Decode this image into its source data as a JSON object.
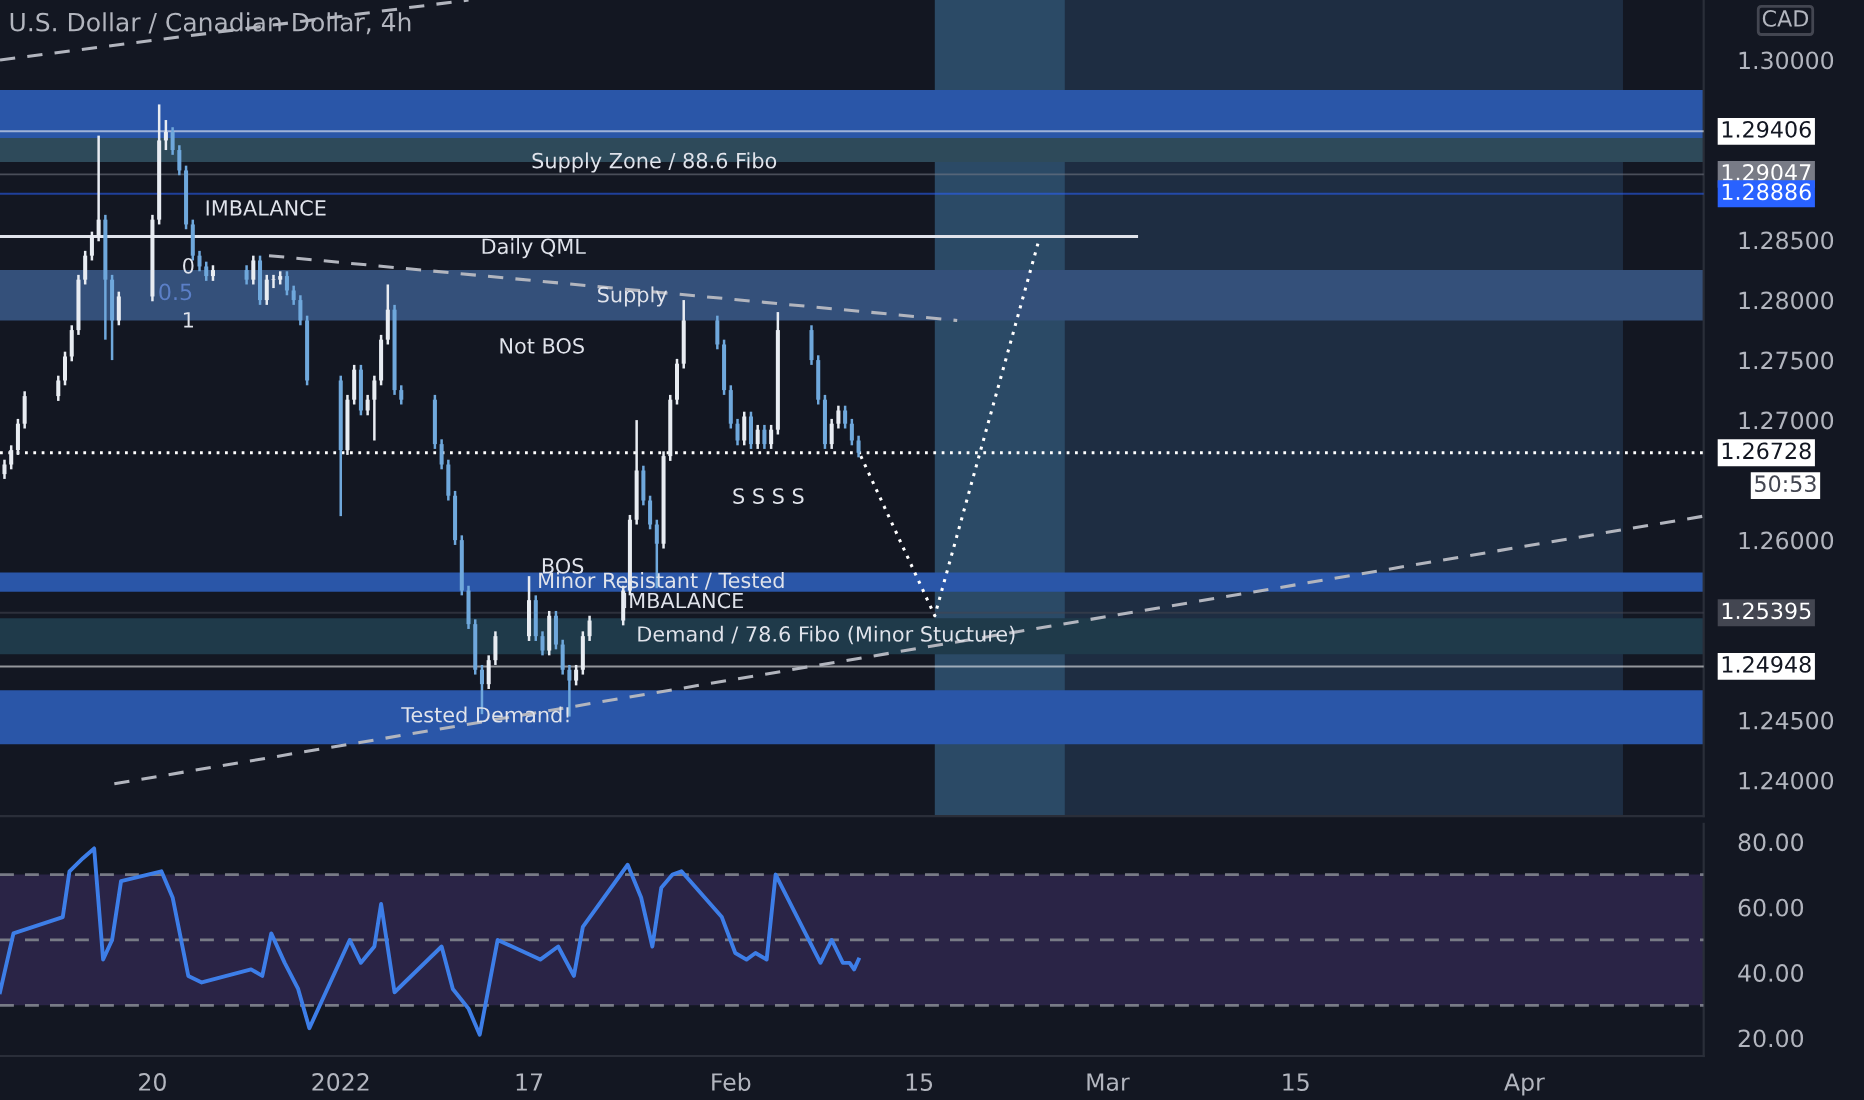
{
  "chart_data": [
    {
      "type": "candlestick",
      "title": "U.S. Dollar / Canadian Dollar, 4h",
      "x": [
        "2021-12-09T00:00",
        "2021-12-09T12:00",
        "2021-12-10T00:00",
        "2021-12-10T12:00",
        "2021-12-13T00:00",
        "2021-12-13T12:00",
        "2021-12-14T00:00",
        "2021-12-14T12:00",
        "2021-12-15T00:00",
        "2021-12-15T12:00",
        "2021-12-16T00:00",
        "2021-12-16T12:00",
        "2021-12-17T00:00",
        "2021-12-17T12:00",
        "2021-12-20T00:00",
        "2021-12-20T12:00",
        "2021-12-21T00:00",
        "2021-12-21T12:00",
        "2021-12-22T00:00",
        "2021-12-22T12:00",
        "2021-12-23T00:00",
        "2021-12-23T12:00",
        "2021-12-24T00:00",
        "2021-12-24T12:00",
        "2021-12-27T00:00",
        "2021-12-27T12:00",
        "2021-12-28T00:00",
        "2021-12-28T12:00",
        "2021-12-29T00:00",
        "2021-12-29T12:00",
        "2021-12-30T00:00",
        "2021-12-30T12:00",
        "2021-12-31T00:00",
        "2021-12-31T12:00",
        "2022-01-03T00:00",
        "2022-01-03T12:00",
        "2022-01-04T00:00",
        "2022-01-04T12:00",
        "2022-01-05T00:00",
        "2022-01-05T12:00",
        "2022-01-06T00:00",
        "2022-01-06T12:00",
        "2022-01-07T00:00",
        "2022-01-07T12:00",
        "2022-01-10T00:00",
        "2022-01-10T12:00",
        "2022-01-11T00:00",
        "2022-01-11T12:00",
        "2022-01-12T00:00",
        "2022-01-12T12:00",
        "2022-01-13T00:00",
        "2022-01-13T12:00",
        "2022-01-14T00:00",
        "2022-01-14T12:00",
        "2022-01-17T00:00",
        "2022-01-17T12:00",
        "2022-01-18T00:00",
        "2022-01-18T12:00",
        "2022-01-19T00:00",
        "2022-01-19T12:00",
        "2022-01-20T00:00",
        "2022-01-20T12:00",
        "2022-01-21T00:00",
        "2022-01-21T12:00",
        "2022-01-24T00:00",
        "2022-01-24T12:00",
        "2022-01-25T00:00",
        "2022-01-25T12:00",
        "2022-01-26T00:00",
        "2022-01-26T12:00",
        "2022-01-27T00:00",
        "2022-01-27T12:00",
        "2022-01-28T00:00",
        "2022-01-28T12:00",
        "2022-01-31T00:00",
        "2022-01-31T12:00",
        "2022-02-01T00:00",
        "2022-02-01T12:00",
        "2022-02-02T00:00",
        "2022-02-02T12:00",
        "2022-02-03T00:00",
        "2022-02-03T12:00",
        "2022-02-04T00:00",
        "2022-02-04T12:00",
        "2022-02-07T00:00",
        "2022-02-07T12:00",
        "2022-02-08T00:00",
        "2022-02-08T12:00",
        "2022-02-09T00:00",
        "2022-02-09T12:00",
        "2022-02-10T00:00",
        "2022-02-10T12:00"
      ],
      "series": [
        {
          "type": "candlestick",
          "colors": [
            "#e8ecf2",
            "#e8ecf2",
            "#e8ecf2",
            "#e8ecf2",
            "#e8ecf2",
            "#e8ecf2",
            "#e8ecf2",
            "#e8ecf2",
            "#e8ecf2",
            "#e8ecf2",
            "#e8ecf2",
            "#6fa8dc",
            "#6fa8dc",
            "#e8ecf2",
            "#e8ecf2",
            "#e8ecf2",
            "#e8ecf2",
            "#6fa8dc",
            "#6fa8dc",
            "#6fa8dc",
            "#6fa8dc",
            "#6fa8dc",
            "#6fa8dc",
            "#e8ecf2",
            "#6fa8dc",
            "#e8ecf2",
            "#6fa8dc",
            "#e8ecf2",
            "#e8ecf2",
            "#e8ecf2",
            "#6fa8dc",
            "#6fa8dc",
            "#6fa8dc",
            "#6fa8dc",
            "#6fa8dc",
            "#e8ecf2",
            "#e8ecf2",
            "#6fa8dc",
            "#e8ecf2",
            "#e8ecf2",
            "#e8ecf2",
            "#e8ecf2",
            "#6fa8dc",
            "#6fa8dc",
            "#6fa8dc",
            "#6fa8dc",
            "#6fa8dc",
            "#6fa8dc",
            "#6fa8dc",
            "#6fa8dc",
            "#6fa8dc",
            "#6fa8dc",
            "#e8ecf2",
            "#e8ecf2",
            "#e8ecf2",
            "#6fa8dc",
            "#6fa8dc",
            "#e8ecf2",
            "#6fa8dc",
            "#6fa8dc",
            "#6fa8dc",
            "#e8ecf2",
            "#e8ecf2",
            "#e8ecf2",
            "#e8ecf2",
            "#e8ecf2",
            "#e8ecf2",
            "#6fa8dc",
            "#6fa8dc",
            "#6fa8dc",
            "#e8ecf2",
            "#e8ecf2",
            "#e8ecf2",
            "#e8ecf2",
            "#6fa8dc",
            "#6fa8dc",
            "#6fa8dc",
            "#6fa8dc",
            "#e8ecf2",
            "#6fa8dc",
            "#e8ecf2",
            "#6fa8dc",
            "#e8ecf2",
            "#e8ecf2",
            "#6fa8dc",
            "#6fa8dc",
            "#6fa8dc",
            "#e8ecf2",
            "#e8ecf2",
            "#6fa8dc",
            "#6fa8dc",
            "#6fa8dc"
          ],
          "ohlc": [
            [
              1.2655,
              1.2667,
              1.2651,
              1.2663
            ],
            [
              1.2663,
              1.2679,
              1.2659,
              1.2675
            ],
            [
              1.2675,
              1.2701,
              1.2671,
              1.2697
            ],
            [
              1.2697,
              1.2724,
              1.2693,
              1.272
            ],
            [
              1.272,
              1.2737,
              1.2716,
              1.2733
            ],
            [
              1.2733,
              1.2757,
              1.2729,
              1.2753
            ],
            [
              1.2753,
              1.2779,
              1.2749,
              1.2775
            ],
            [
              1.2775,
              1.2821,
              1.2771,
              1.2817
            ],
            [
              1.2817,
              1.2841,
              1.2813,
              1.2837
            ],
            [
              1.2837,
              1.2857,
              1.2833,
              1.2853
            ],
            [
              1.2853,
              1.2937,
              1.2849,
              1.2867
            ],
            [
              1.2867,
              1.2871,
              1.2767,
              1.2817
            ],
            [
              1.2817,
              1.2821,
              1.275,
              1.2783
            ],
            [
              1.2783,
              1.2807,
              1.2779,
              1.2803
            ],
            [
              1.2803,
              1.2871,
              1.2799,
              1.2867
            ],
            [
              1.2867,
              1.2963,
              1.2863,
              1.2933
            ],
            [
              1.2933,
              1.295,
              1.2925,
              1.294
            ],
            [
              1.294,
              1.2944,
              1.2921,
              1.2925
            ],
            [
              1.2925,
              1.2929,
              1.2904,
              1.2908
            ],
            [
              1.2908,
              1.2912,
              1.2859,
              1.2863
            ],
            [
              1.2863,
              1.2867,
              1.2833,
              1.2837
            ],
            [
              1.2837,
              1.2841,
              1.2824,
              1.2828
            ],
            [
              1.2828,
              1.2832,
              1.2816,
              1.282
            ],
            [
              1.282,
              1.2829,
              1.2816,
              1.2825
            ],
            [
              1.2825,
              1.2829,
              1.2813,
              1.2817
            ],
            [
              1.2817,
              1.2837,
              1.2813,
              1.2833
            ],
            [
              1.2833,
              1.2837,
              1.2796,
              1.28
            ],
            [
              1.28,
              1.2821,
              1.2796,
              1.2817
            ],
            [
              1.2817,
              1.2821,
              1.281,
              1.2817
            ],
            [
              1.2817,
              1.2824,
              1.2813,
              1.282
            ],
            [
              1.282,
              1.2824,
              1.2804,
              1.2808
            ],
            [
              1.2808,
              1.2812,
              1.2796,
              1.28
            ],
            [
              1.28,
              1.2804,
              1.2779,
              1.2783
            ],
            [
              1.2783,
              1.2787,
              1.2729,
              1.2733
            ],
            [
              1.2733,
              1.2737,
              1.262,
              1.2675
            ],
            [
              1.2675,
              1.2721,
              1.2671,
              1.2717
            ],
            [
              1.2717,
              1.2746,
              1.2713,
              1.2742
            ],
            [
              1.2742,
              1.2746,
              1.2704,
              1.2708
            ],
            [
              1.2708,
              1.2721,
              1.2704,
              1.2717
            ],
            [
              1.2717,
              1.2737,
              1.2683,
              1.2733
            ],
            [
              1.2733,
              1.2771,
              1.2729,
              1.2767
            ],
            [
              1.2767,
              1.2813,
              1.2763,
              1.2792
            ],
            [
              1.2792,
              1.2796,
              1.2721,
              1.2725
            ],
            [
              1.2725,
              1.2729,
              1.2713,
              1.2717
            ],
            [
              1.2717,
              1.2721,
              1.2676,
              1.268
            ],
            [
              1.268,
              1.2684,
              1.2659,
              1.2663
            ],
            [
              1.2663,
              1.2667,
              1.2633,
              1.2637
            ],
            [
              1.2637,
              1.2641,
              1.2596,
              1.26
            ],
            [
              1.26,
              1.2604,
              1.2554,
              1.2558
            ],
            [
              1.2558,
              1.2562,
              1.2526,
              1.253
            ],
            [
              1.253,
              1.2534,
              1.2488,
              1.2492
            ],
            [
              1.2492,
              1.2496,
              1.2455,
              1.248
            ],
            [
              1.248,
              1.2504,
              1.2476,
              1.25
            ],
            [
              1.25,
              1.2524,
              1.2496,
              1.252
            ],
            [
              1.252,
              1.257,
              1.2516,
              1.255
            ],
            [
              1.255,
              1.2554,
              1.2516,
              1.252
            ],
            [
              1.252,
              1.2524,
              1.2504,
              1.2508
            ],
            [
              1.2508,
              1.2541,
              1.2504,
              1.2537
            ],
            [
              1.2537,
              1.2541,
              1.2509,
              1.2513
            ],
            [
              1.2513,
              1.2517,
              1.2488,
              1.2492
            ],
            [
              1.2492,
              1.2496,
              1.2453,
              1.2483
            ],
            [
              1.2483,
              1.2496,
              1.2479,
              1.2492
            ],
            [
              1.2492,
              1.2524,
              1.2488,
              1.252
            ],
            [
              1.252,
              1.2537,
              1.2516,
              1.2533
            ],
            [
              1.2533,
              1.2562,
              1.2529,
              1.2558
            ],
            [
              1.2558,
              1.2621,
              1.2554,
              1.2617
            ],
            [
              1.2617,
              1.27,
              1.2613,
              1.2658
            ],
            [
              1.2658,
              1.2662,
              1.2629,
              1.2633
            ],
            [
              1.2633,
              1.2637,
              1.2609,
              1.2613
            ],
            [
              1.2613,
              1.2617,
              1.256,
              1.2597
            ],
            [
              1.2597,
              1.2674,
              1.2593,
              1.267
            ],
            [
              1.267,
              1.2721,
              1.2666,
              1.2717
            ],
            [
              1.2717,
              1.2751,
              1.2713,
              1.2747
            ],
            [
              1.2747,
              1.28,
              1.2743,
              1.2783
            ],
            [
              1.2783,
              1.2787,
              1.2759,
              1.2763
            ],
            [
              1.2763,
              1.2767,
              1.2721,
              1.2725
            ],
            [
              1.2725,
              1.2729,
              1.2693,
              1.2697
            ],
            [
              1.2697,
              1.2701,
              1.2679,
              1.2683
            ],
            [
              1.2683,
              1.2707,
              1.2679,
              1.2703
            ],
            [
              1.2703,
              1.2707,
              1.2676,
              1.268
            ],
            [
              1.268,
              1.2696,
              1.2676,
              1.2692
            ],
            [
              1.2692,
              1.2696,
              1.2676,
              1.268
            ],
            [
              1.268,
              1.2696,
              1.2676,
              1.2692
            ],
            [
              1.2692,
              1.279,
              1.2688,
              1.2775
            ],
            [
              1.2775,
              1.2779,
              1.2746,
              1.275
            ],
            [
              1.275,
              1.2754,
              1.2713,
              1.2717
            ],
            [
              1.2717,
              1.2721,
              1.2676,
              1.268
            ],
            [
              1.268,
              1.2701,
              1.2676,
              1.2697
            ],
            [
              1.2697,
              1.2712,
              1.2693,
              1.2708
            ],
            [
              1.2708,
              1.2712,
              1.2693,
              1.2697
            ],
            [
              1.2697,
              1.2701,
              1.2679,
              1.2683
            ],
            [
              1.2683,
              1.2687,
              1.2669,
              1.26728
            ]
          ]
        },
        {
          "type": "line",
          "color": "#e0e3eb",
          "line_style": "solid",
          "x": [
            "2021-12-08T16:00",
            "2022-03-03T04:00"
          ],
          "values": [
            1.2853,
            1.2853
          ]
        },
        {
          "type": "line",
          "color": "#b2b5be",
          "line_style": "dashed",
          "x": [
            "2021-12-17T04:00",
            "2022-04-14T08:00"
          ],
          "values": [
            1.2397,
            1.262
          ]
        },
        {
          "type": "line",
          "color": "#b2b5be",
          "line_style": "dashed",
          "x": [
            "2021-12-08T16:00",
            "2022-01-12T12:00"
          ],
          "values": [
            1.3,
            1.305
          ]
        },
        {
          "type": "line",
          "color": "#b2b5be",
          "line_style": "dashed",
          "x": [
            "2021-12-28T16:00",
            "2022-02-17T20:00"
          ],
          "values": [
            1.2837,
            1.2783
          ]
        },
        {
          "type": "line",
          "color": "#ffffff",
          "line_style": "dotted",
          "x": [
            "2022-02-10T16:00",
            "2022-02-16T04:00",
            "2022-02-23T20:00"
          ],
          "values": [
            1.267,
            1.2537,
            1.2847
          ]
        }
      ],
      "bands": [
        {
          "axis": "x",
          "from": "2022-02-21T04:00",
          "to": "2022-04-08T08:00",
          "color": "#1e2d42"
        },
        {
          "axis": "x",
          "from": "2022-02-16T04:00",
          "to": "2022-02-25T20:00",
          "color": "#2b4a66"
        },
        {
          "axis": "y",
          "from": 1.2933,
          "to": 1.2975,
          "color": "#2a56a8"
        },
        {
          "axis": "y",
          "from": 1.243,
          "to": 1.2475,
          "color": "#2a56a8"
        },
        {
          "axis": "y",
          "from": 1.2915,
          "to": 1.2935,
          "color": "#2e4a5a"
        },
        {
          "axis": "y",
          "from": 1.2783,
          "to": 1.2825,
          "color": "#34507a"
        },
        {
          "axis": "y",
          "from": 1.2557,
          "to": 1.2573,
          "color": "#2a56a8"
        },
        {
          "axis": "y",
          "from": 1.2505,
          "to": 1.2535,
          "color": "#1f3a4a"
        }
      ],
      "ref_lines": [
        {
          "axis": "y",
          "value": 1.26728,
          "label": "1.26728",
          "line_style": "dotted",
          "color": "#ffffff"
        },
        {
          "axis": "y",
          "value": 1.29406,
          "label": "1.29406",
          "line_style": "solid",
          "color": "#ffffff"
        },
        {
          "axis": "y",
          "value": 1.29047,
          "label": "1.29047",
          "line_style": "solid",
          "color": "#787b86"
        },
        {
          "axis": "y",
          "value": 1.28886,
          "label": "1.28886",
          "line_style": "solid",
          "color": "#2962ff"
        },
        {
          "axis": "y",
          "value": 1.25395,
          "label": "1.25395",
          "line_style": "solid",
          "color": "#434651"
        },
        {
          "axis": "y",
          "value": 1.24948,
          "label": "1.24948",
          "line_style": "solid",
          "color": "#ffffff"
        }
      ],
      "annotations": [
        "Supply Zone / 88.6 Fibo",
        "IMBALANCE",
        "Daily QML",
        {
          "text": "0",
          "x": "2021-12-22T16:00",
          "y": 1.2827
        },
        "0.5",
        {
          "text": "1",
          "x": "2021-12-22T16:00",
          "y": 1.2782
        },
        {
          "text": "Supply",
          "x": "2022-01-24T16:00",
          "y": 1.2803
        },
        "Not BOS",
        "S S S S",
        {
          "text": "BOS",
          "x": "2022-01-19T12:00",
          "y": 1.2577
        },
        {
          "text": "Minor Resistant / Tested",
          "x": "2022-01-26T20:00",
          "y": 1.2565
        },
        "IMBALANCE",
        "Demand / 78.6 Fibo (Minor Stucture)",
        {
          "text": "Tested Demand!",
          "x": "2022-01-13T20:00",
          "y": 1.2453
        },
        "CAD",
        "50:53"
      ],
      "xlim": [
        "2021-12-08T16:00",
        "2022-04-14T08:00"
      ],
      "ylim": [
        1.237,
        1.305
      ],
      "yticks": [
        {
          "value": 1.24,
          "label": "1.24000"
        },
        {
          "value": 1.245,
          "label": "1.24500"
        },
        {
          "value": 1.26,
          "label": "1.26000"
        },
        {
          "value": 1.27,
          "label": "1.27000"
        },
        {
          "value": 1.275,
          "label": "1.27500"
        },
        {
          "value": 1.28,
          "label": "1.28000"
        },
        {
          "value": 1.285,
          "label": "1.28500"
        },
        {
          "value": 1.3,
          "label": "1.30000"
        }
      ],
      "tick_labels": "y"
    },
    {
      "type": "line",
      "series": [
        {
          "color": "#3d7ee8",
          "x": [
            "2021-12-08T16:00",
            "2021-12-09T16:00",
            "2021-12-13T08:00",
            "2021-12-13T20:00",
            "2021-12-14T20:00",
            "2021-12-15T16:00",
            "2021-12-16T08:00",
            "2021-12-17T00:00",
            "2021-12-17T16:00",
            "2021-12-20T16:00",
            "2021-12-21T12:00",
            "2021-12-22T16:00",
            "2021-12-23T16:00",
            "2021-12-27T08:00",
            "2021-12-28T04:00",
            "2021-12-28T20:00",
            "2021-12-29T20:00",
            "2021-12-30T20:00",
            "2021-12-31T16:00",
            "2022-01-03T16:00",
            "2022-01-04T12:00",
            "2022-01-05T12:00",
            "2022-01-06T00:00",
            "2022-01-07T00:00",
            "2022-01-10T12:00",
            "2022-01-11T08:00",
            "2022-01-12T12:00",
            "2022-01-13T08:00",
            "2022-01-14T16:00",
            "2022-01-17T20:00",
            "2022-01-19T04:00",
            "2022-01-20T08:00",
            "2022-01-21T00:00",
            "2022-01-24T08:00",
            "2022-01-25T08:00",
            "2022-01-26T04:00",
            "2022-01-26T20:00",
            "2022-01-27T16:00",
            "2022-01-28T08:00",
            "2022-01-31T08:00",
            "2022-02-01T08:00",
            "2022-02-02T04:00",
            "2022-02-02T20:00",
            "2022-02-03T16:00",
            "2022-02-04T08:00",
            "2022-02-07T16:00",
            "2022-02-08T12:00",
            "2022-02-09T08:00",
            "2022-02-09T20:00",
            "2022-02-10T04:00",
            "2022-02-10T12:00"
          ],
          "values": [
            34,
            52,
            57,
            71,
            75,
            78,
            44,
            50,
            68,
            71,
            63,
            39,
            37,
            41,
            39,
            52,
            43,
            35,
            23,
            50,
            43,
            48,
            61,
            34,
            48,
            35,
            29,
            21,
            50,
            44,
            48,
            39,
            54,
            73,
            63,
            48,
            66,
            70,
            71,
            57,
            46,
            44,
            46,
            44,
            70,
            43,
            50,
            43,
            43,
            41,
            44
          ]
        }
      ],
      "ref_lines": [
        {
          "axis": "y",
          "value": 70,
          "line_style": "dashed",
          "color": "#787b86"
        },
        {
          "axis": "y",
          "value": 50,
          "line_style": "dashed",
          "color": "#787b86"
        },
        {
          "axis": "y",
          "value": 30,
          "line_style": "dashed",
          "color": "#787b86"
        }
      ],
      "bands": [
        {
          "axis": "y",
          "from": 30,
          "to": 70,
          "color": "#2a2446"
        }
      ],
      "xlim": [
        "2021-12-08T16:00",
        "2022-04-14T08:00"
      ],
      "ylim": [
        14.5,
        85.5
      ],
      "xticks": [
        {
          "value": "2021-12-20",
          "label": "20"
        },
        {
          "value": "2022-01-03",
          "label": "2022"
        },
        {
          "value": "2022-01-17",
          "label": "17"
        },
        {
          "value": "2022-02-01",
          "label": "Feb"
        },
        {
          "value": "2022-02-15",
          "label": "15"
        },
        {
          "value": "2022-03-01",
          "label": "Mar"
        },
        {
          "value": "2022-03-15",
          "label": "15"
        },
        {
          "value": "2022-04-01",
          "label": "Apr"
        }
      ],
      "yticks": [
        {
          "value": 20,
          "label": "20.00"
        },
        {
          "value": 40,
          "label": "40.00"
        },
        {
          "value": 60,
          "label": "60.00"
        },
        {
          "value": 80,
          "label": "80.00"
        }
      ]
    }
  ]
}
